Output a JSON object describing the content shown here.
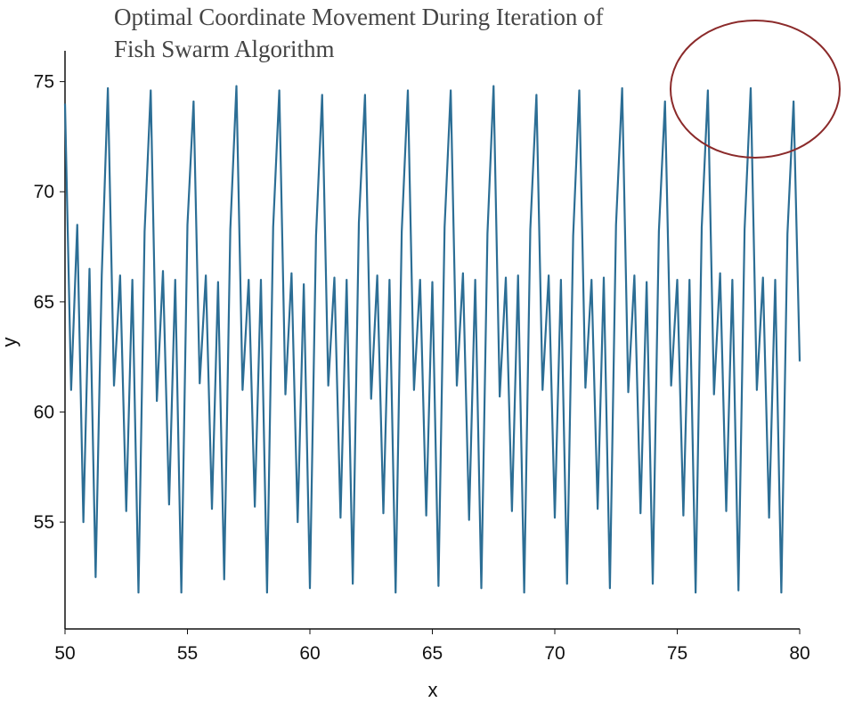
{
  "chart_data": {
    "type": "line",
    "title": [
      "Optimal Coordinate Movement During Iteration of",
      "Fish Swarm Algorithm"
    ],
    "x_label": "x",
    "y_label": "y",
    "xlim": [
      50,
      80
    ],
    "xticks": [
      50,
      55,
      60,
      65,
      70,
      75,
      80
    ],
    "ylim": [
      50.15,
      76.4
    ],
    "yticks": [
      55,
      60,
      65,
      70,
      75
    ],
    "series": [
      {
        "color": "#2c6e95",
        "x": [
          50,
          50.25,
          50.5,
          50.75,
          51,
          51.25,
          51.5,
          51.75,
          52,
          52.25,
          52.5,
          52.75,
          53,
          53.25,
          53.5,
          53.75,
          54,
          54.25,
          54.5,
          54.75,
          55,
          55.25,
          55.5,
          55.75,
          56,
          56.25,
          56.5,
          56.75,
          57,
          57.25,
          57.5,
          57.75,
          58,
          58.25,
          58.5,
          58.75,
          59,
          59.25,
          59.5,
          59.75,
          60,
          60.25,
          60.5,
          60.75,
          61,
          61.25,
          61.5,
          61.75,
          62,
          62.25,
          62.5,
          62.75,
          63,
          63.25,
          63.5,
          63.75,
          64,
          64.25,
          64.5,
          64.75,
          65,
          65.25,
          65.5,
          65.75,
          66,
          66.25,
          66.5,
          66.75,
          67,
          67.25,
          67.5,
          67.75,
          68,
          68.25,
          68.5,
          68.75,
          69,
          69.25,
          69.5,
          69.75,
          70,
          70.25,
          70.5,
          70.75,
          71,
          71.25,
          71.5,
          71.75,
          72,
          72.25,
          72.5,
          72.75,
          73,
          73.25,
          73.5,
          73.75,
          74,
          74.25,
          74.5,
          74.75,
          75,
          75.25,
          75.5,
          75.75,
          76,
          76.25,
          76.5,
          76.75,
          77,
          77.25,
          77.5,
          77.75,
          78,
          78.25,
          78.5,
          78.75,
          79,
          79.25,
          79.5,
          79.75,
          80
        ],
        "values": [
          74.0,
          61.0,
          68.5,
          55.0,
          66.5,
          52.5,
          66.2,
          74.7,
          61.2,
          66.2,
          55.5,
          66.0,
          51.8,
          68.2,
          74.6,
          60.5,
          66.4,
          55.8,
          66.0,
          51.8,
          68.5,
          74.1,
          61.3,
          66.2,
          55.6,
          65.9,
          52.4,
          68.3,
          74.8,
          61.0,
          66.0,
          55.7,
          66.0,
          51.8,
          68.4,
          74.6,
          60.8,
          66.3,
          55.0,
          65.8,
          52.0,
          68.0,
          74.4,
          61.2,
          66.1,
          55.2,
          66.0,
          52.2,
          68.6,
          74.4,
          60.6,
          66.2,
          55.4,
          66.0,
          51.8,
          68.2,
          74.6,
          61.0,
          66.0,
          55.3,
          65.9,
          52.1,
          68.4,
          74.6,
          61.2,
          66.3,
          55.1,
          66.0,
          52.0,
          68.1,
          74.8,
          60.7,
          66.1,
          55.5,
          66.2,
          51.8,
          68.3,
          74.4,
          61.0,
          66.2,
          55.2,
          66.0,
          52.2,
          68.0,
          74.6,
          61.1,
          66.0,
          55.6,
          66.1,
          52.0,
          68.5,
          74.7,
          60.9,
          66.2,
          55.4,
          65.9,
          52.2,
          68.2,
          74.1,
          61.2,
          66.0,
          55.3,
          66.0,
          51.8,
          68.4,
          74.6,
          60.8,
          66.3,
          55.5,
          66.0,
          51.9,
          68.3,
          74.7,
          61.0,
          66.1,
          55.2,
          66.0,
          51.8,
          68.1,
          74.1,
          62.3
        ]
      }
    ]
  }
}
